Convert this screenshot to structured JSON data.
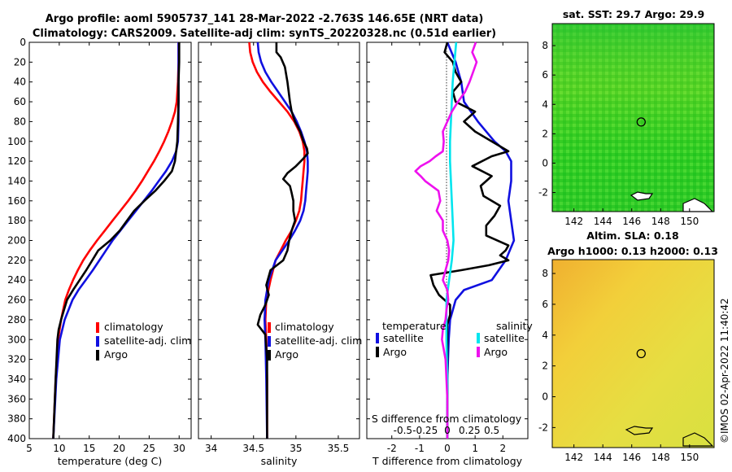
{
  "figure": {
    "title_line1": "Argo profile: aoml 5905737_141 28-Mar-2022 -2.763S 146.65E (NRT data)",
    "title_line2": "Climatology: CARS2009. Satellite-adj clim: synTS_20220328.nc (0.51d earlier)",
    "watermark": "©IMOS 02-Apr-2022 11:40:42"
  },
  "colors": {
    "climatology": "#ff0000",
    "satellite": "#1010e0",
    "argo": "#000000",
    "salinity_satellite": "#00e5ee",
    "salinity_argo": "#ee11ee",
    "sst_map": "#2fd42a",
    "sla_map": "#f2d83a"
  },
  "chart_data": [
    {
      "type": "line",
      "name": "temperature-profile",
      "xlabel": "temperature (deg C)",
      "ylabel": "",
      "xlim": [
        5,
        32
      ],
      "ylim": [
        400,
        0
      ],
      "xticks": [
        5,
        10,
        15,
        20,
        25,
        30
      ],
      "yticks": [
        0,
        20,
        40,
        60,
        80,
        100,
        120,
        140,
        160,
        180,
        200,
        220,
        240,
        260,
        280,
        300,
        320,
        340,
        360,
        380,
        400
      ],
      "legend": {
        "position": "bottom-right",
        "entries": [
          "climatology",
          "satellite-adj. clim",
          "Argo"
        ]
      },
      "series": [
        {
          "name": "climatology",
          "depth": [
            0,
            20,
            40,
            60,
            70,
            80,
            90,
            100,
            110,
            120,
            130,
            140,
            150,
            160,
            170,
            180,
            190,
            200,
            210,
            220,
            230,
            240,
            250,
            260,
            280,
            300,
            340,
            400
          ],
          "values": [
            29.9,
            29.9,
            29.8,
            29.6,
            29.3,
            28.8,
            28.2,
            27.5,
            26.7,
            25.8,
            24.8,
            23.8,
            22.7,
            21.5,
            20.2,
            18.9,
            17.6,
            16.3,
            15.1,
            14.0,
            13.1,
            12.3,
            11.6,
            11.0,
            10.3,
            9.8,
            9.4,
            9.0
          ]
        },
        {
          "name": "satellite-adj. clim",
          "depth": [
            0,
            20,
            40,
            60,
            80,
            100,
            110,
            120,
            130,
            140,
            150,
            160,
            170,
            180,
            190,
            200,
            210,
            220,
            230,
            240,
            250,
            260,
            280,
            300,
            340,
            400
          ],
          "values": [
            29.9,
            29.9,
            29.9,
            29.9,
            29.9,
            29.8,
            29.5,
            28.8,
            27.8,
            26.6,
            25.4,
            24.1,
            22.8,
            21.5,
            20.2,
            18.9,
            17.8,
            16.7,
            15.6,
            14.4,
            13.2,
            12.2,
            10.9,
            10.1,
            9.5,
            9.0
          ]
        },
        {
          "name": "Argo",
          "depth": [
            0,
            20,
            40,
            60,
            80,
            100,
            120,
            130,
            140,
            150,
            160,
            170,
            180,
            190,
            200,
            210,
            220,
            230,
            240,
            250,
            260,
            270,
            280,
            290,
            300,
            340,
            400
          ],
          "values": [
            30.0,
            30.0,
            29.9,
            29.9,
            29.8,
            29.7,
            29.3,
            28.8,
            27.5,
            26.0,
            24.2,
            22.5,
            21.3,
            20.1,
            18.5,
            16.5,
            15.5,
            14.5,
            13.4,
            12.3,
            11.3,
            10.8,
            10.3,
            9.9,
            9.7,
            9.4,
            9.0
          ]
        }
      ]
    },
    {
      "type": "line",
      "name": "salinity-profile",
      "xlabel": "salinity",
      "ylabel": "",
      "xlim": [
        33.85,
        35.75
      ],
      "ylim": [
        400,
        0
      ],
      "xticks": [
        34,
        34.5,
        35,
        35.5
      ],
      "xticklabels": [
        "34",
        "34.5",
        "35",
        "35.5"
      ],
      "legend": {
        "position": "bottom-right",
        "entries": [
          "climatology",
          "satellite-adj. clim",
          "Argo"
        ]
      },
      "series": [
        {
          "name": "climatology",
          "depth": [
            0,
            10,
            20,
            30,
            40,
            50,
            60,
            70,
            80,
            90,
            100,
            110,
            120,
            130,
            140,
            150,
            160,
            170,
            180,
            190,
            200,
            210,
            220,
            240,
            260,
            280,
            300,
            340,
            400
          ],
          "values": [
            34.45,
            34.46,
            34.49,
            34.54,
            34.61,
            34.7,
            34.8,
            34.9,
            34.98,
            35.04,
            35.08,
            35.1,
            35.1,
            35.09,
            35.08,
            35.07,
            35.06,
            35.04,
            35.0,
            34.95,
            34.88,
            34.82,
            34.76,
            34.7,
            34.65,
            34.64,
            34.65,
            34.66,
            34.66
          ]
        },
        {
          "name": "satellite-adj. clim",
          "depth": [
            0,
            10,
            20,
            30,
            40,
            50,
            60,
            70,
            80,
            90,
            100,
            110,
            120,
            130,
            140,
            150,
            160,
            170,
            180,
            190,
            200,
            210,
            220,
            240,
            260,
            280,
            300,
            340,
            400
          ],
          "values": [
            34.55,
            34.56,
            34.59,
            34.64,
            34.71,
            34.79,
            34.87,
            34.95,
            35.01,
            35.06,
            35.1,
            35.13,
            35.14,
            35.14,
            35.13,
            35.12,
            35.11,
            35.09,
            35.05,
            34.99,
            34.92,
            34.84,
            34.76,
            34.68,
            34.64,
            34.63,
            34.64,
            34.65,
            34.66
          ]
        },
        {
          "name": "Argo",
          "depth": [
            0,
            10,
            15,
            25,
            40,
            60,
            70,
            80,
            90,
            100,
            107,
            112,
            118,
            125,
            132,
            138,
            145,
            152,
            160,
            170,
            180,
            190,
            200,
            210,
            220,
            230,
            245,
            255,
            265,
            275,
            285,
            295,
            320,
            400
          ],
          "values": [
            34.77,
            34.77,
            34.82,
            34.87,
            34.9,
            34.93,
            34.95,
            34.99,
            35.05,
            35.09,
            35.13,
            35.14,
            35.08,
            35.0,
            34.9,
            34.85,
            34.93,
            34.95,
            34.97,
            34.97,
            34.99,
            34.95,
            34.92,
            34.9,
            34.85,
            34.7,
            34.65,
            34.68,
            34.64,
            34.58,
            34.55,
            34.64,
            34.66,
            34.66
          ]
        }
      ]
    },
    {
      "type": "line",
      "name": "difference-profile",
      "xlabel": "T difference from climatology",
      "xlabel_top": "S difference from climatology",
      "xlim": [
        -2.9,
        2.9
      ],
      "ylim": [
        400,
        0
      ],
      "xticks": [
        -2,
        -1,
        0,
        1,
        2
      ],
      "s_ticklabels": [
        "-0.5",
        "-0.25",
        "0",
        "0.25",
        "0.5"
      ],
      "legend": {
        "temperature_header": "temperature",
        "salinity_header": "salinity",
        "entries": [
          "satellite",
          "Argo",
          "satellite",
          "Argo"
        ]
      },
      "series": [
        {
          "name": "temperature satellite",
          "depth": [
            0,
            20,
            40,
            60,
            80,
            100,
            110,
            120,
            140,
            160,
            180,
            200,
            220,
            240,
            250,
            260,
            280,
            300,
            340,
            400
          ],
          "values": [
            0.0,
            0.3,
            0.5,
            0.6,
            1.1,
            1.7,
            2.1,
            2.3,
            2.3,
            2.2,
            2.3,
            2.4,
            2.1,
            1.6,
            0.6,
            0.3,
            0.1,
            0.05,
            0.0,
            0.0
          ]
        },
        {
          "name": "temperature Argo",
          "depth": [
            0,
            10,
            20,
            30,
            40,
            50,
            60,
            70,
            80,
            90,
            100,
            110,
            115,
            125,
            135,
            145,
            155,
            165,
            175,
            185,
            195,
            205,
            210,
            215,
            220,
            225,
            230,
            235,
            245,
            255,
            265,
            275,
            285,
            300,
            400
          ],
          "values": [
            0.0,
            -0.1,
            0.2,
            0.3,
            0.5,
            0.2,
            0.3,
            1.0,
            0.6,
            1.0,
            1.6,
            2.2,
            1.6,
            0.9,
            1.6,
            1.2,
            1.3,
            1.9,
            1.7,
            1.4,
            1.4,
            2.2,
            2.1,
            1.9,
            2.2,
            1.5,
            0.5,
            -0.6,
            -0.5,
            -0.3,
            0.1,
            0.1,
            0.0,
            0.0,
            0.0
          ]
        },
        {
          "name": "salinity satellite",
          "depth": [
            0,
            20,
            40,
            60,
            80,
            100,
            120,
            140,
            160,
            180,
            200,
            220,
            240,
            260,
            300,
            340,
            400
          ],
          "values": [
            0.1,
            0.08,
            0.06,
            0.05,
            0.04,
            0.03,
            0.03,
            0.04,
            0.05,
            0.06,
            0.07,
            0.05,
            0.02,
            -0.01,
            -0.01,
            0.0,
            0.0
          ]
        },
        {
          "name": "salinity Argo",
          "depth": [
            0,
            10,
            20,
            30,
            40,
            50,
            60,
            70,
            80,
            90,
            100,
            110,
            115,
            120,
            125,
            130,
            135,
            140,
            150,
            160,
            170,
            180,
            190,
            200,
            210,
            220,
            230,
            240,
            250,
            260,
            270,
            280,
            290,
            300,
            320,
            360,
            400
          ],
          "values": [
            0.32,
            0.28,
            0.33,
            0.29,
            0.25,
            0.2,
            0.12,
            0.05,
            0.0,
            -0.05,
            -0.04,
            -0.05,
            -0.13,
            -0.2,
            -0.3,
            -0.36,
            -0.3,
            -0.25,
            -0.1,
            -0.08,
            -0.12,
            -0.05,
            -0.05,
            0.0,
            0.02,
            0.01,
            -0.02,
            -0.05,
            0.0,
            0.01,
            -0.01,
            -0.02,
            -0.05,
            -0.06,
            -0.02,
            0.0,
            0.0
          ]
        }
      ]
    },
    {
      "type": "heatmap",
      "name": "sst-map",
      "title": "sat. SST: 29.7 Argo: 29.9",
      "xticks": [
        142,
        144,
        146,
        148,
        150
      ],
      "yticks": [
        8,
        6,
        4,
        2,
        0,
        -2
      ],
      "xlim": [
        140.5,
        151.7
      ],
      "ylim": [
        -3.3,
        9.5
      ],
      "marker": {
        "lon": 146.65,
        "lat": 2.8
      }
    },
    {
      "type": "heatmap",
      "name": "sla-map",
      "title_line1": "Altim. SLA: 0.18",
      "title_line2": "Argo h1000: 0.13 h2000: 0.13",
      "xticks": [
        142,
        144,
        146,
        148,
        150
      ],
      "yticks": [
        8,
        6,
        4,
        2,
        0,
        -2
      ],
      "xlim": [
        140.5,
        151.7
      ],
      "ylim": [
        -3.3,
        8.9
      ],
      "marker": {
        "lon": 146.65,
        "lat": 2.8
      }
    }
  ]
}
